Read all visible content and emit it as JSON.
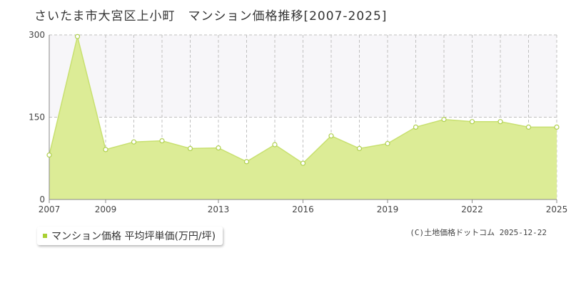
{
  "title": "さいたま市大宮区上小町　マンション価格推移[2007-2025]",
  "legend": {
    "label": "マンション価格 平均坪単価(万円/坪)"
  },
  "credit": "(C)土地価格ドットコム 2025-12-22",
  "colors": {
    "fill": "#dcec96",
    "line": "#c8e070",
    "point_fill": "#ffffff",
    "point_stroke": "#b0d050",
    "upper_band": "#f7f6f9",
    "grid": "#c0c0c0",
    "axis": "#888888",
    "legend_swatch": "#a9d032"
  },
  "chart_data": {
    "type": "area",
    "x": [
      2007,
      2008,
      2009,
      2010,
      2011,
      2012,
      2013,
      2014,
      2015,
      2016,
      2017,
      2018,
      2019,
      2020,
      2021,
      2022,
      2023,
      2024,
      2025
    ],
    "series": [
      {
        "name": "マンション価格 平均坪単価(万円/坪)",
        "values": [
          81,
          297,
          91,
          105,
          107,
          93,
          94,
          69,
          100,
          66,
          116,
          93,
          102,
          132,
          146,
          142,
          142,
          132,
          132
        ]
      }
    ],
    "xlim": [
      2007,
      2025
    ],
    "ylim": [
      0,
      300
    ],
    "yticks": [
      0,
      150,
      300
    ],
    "xtick_labels": [
      "2007",
      "2009",
      "2013",
      "2016",
      "2019",
      "2022",
      "2025"
    ],
    "grid": true,
    "legend_position": "bottom-left"
  }
}
